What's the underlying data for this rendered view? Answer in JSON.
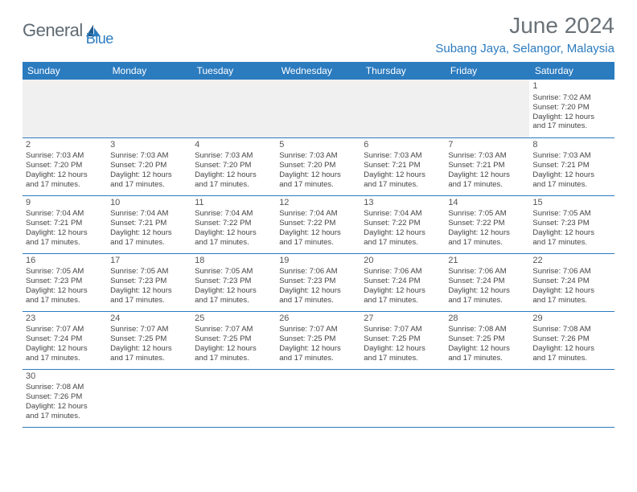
{
  "logo": {
    "text1": "General",
    "text2": "Blue"
  },
  "title": "June 2024",
  "location": "Subang Jaya, Selangor, Malaysia",
  "dayNames": [
    "Sunday",
    "Monday",
    "Tuesday",
    "Wednesday",
    "Thursday",
    "Friday",
    "Saturday"
  ],
  "colors": {
    "headerBg": "#2b7bbf",
    "headerText": "#ffffff",
    "titleColor": "#6a7278",
    "locationColor": "#2b7bbf",
    "logoGray": "#5f6a72",
    "logoBlue": "#2b7bbf",
    "cellBorder": "#2b7bbf",
    "blankBg": "#f0f0f0"
  },
  "firstDayIndex": 6,
  "daysInMonth": 30,
  "days": {
    "1": {
      "sunrise": "7:02 AM",
      "sunset": "7:20 PM",
      "daylight": "12 hours and 17 minutes."
    },
    "2": {
      "sunrise": "7:03 AM",
      "sunset": "7:20 PM",
      "daylight": "12 hours and 17 minutes."
    },
    "3": {
      "sunrise": "7:03 AM",
      "sunset": "7:20 PM",
      "daylight": "12 hours and 17 minutes."
    },
    "4": {
      "sunrise": "7:03 AM",
      "sunset": "7:20 PM",
      "daylight": "12 hours and 17 minutes."
    },
    "5": {
      "sunrise": "7:03 AM",
      "sunset": "7:20 PM",
      "daylight": "12 hours and 17 minutes."
    },
    "6": {
      "sunrise": "7:03 AM",
      "sunset": "7:21 PM",
      "daylight": "12 hours and 17 minutes."
    },
    "7": {
      "sunrise": "7:03 AM",
      "sunset": "7:21 PM",
      "daylight": "12 hours and 17 minutes."
    },
    "8": {
      "sunrise": "7:03 AM",
      "sunset": "7:21 PM",
      "daylight": "12 hours and 17 minutes."
    },
    "9": {
      "sunrise": "7:04 AM",
      "sunset": "7:21 PM",
      "daylight": "12 hours and 17 minutes."
    },
    "10": {
      "sunrise": "7:04 AM",
      "sunset": "7:21 PM",
      "daylight": "12 hours and 17 minutes."
    },
    "11": {
      "sunrise": "7:04 AM",
      "sunset": "7:22 PM",
      "daylight": "12 hours and 17 minutes."
    },
    "12": {
      "sunrise": "7:04 AM",
      "sunset": "7:22 PM",
      "daylight": "12 hours and 17 minutes."
    },
    "13": {
      "sunrise": "7:04 AM",
      "sunset": "7:22 PM",
      "daylight": "12 hours and 17 minutes."
    },
    "14": {
      "sunrise": "7:05 AM",
      "sunset": "7:22 PM",
      "daylight": "12 hours and 17 minutes."
    },
    "15": {
      "sunrise": "7:05 AM",
      "sunset": "7:23 PM",
      "daylight": "12 hours and 17 minutes."
    },
    "16": {
      "sunrise": "7:05 AM",
      "sunset": "7:23 PM",
      "daylight": "12 hours and 17 minutes."
    },
    "17": {
      "sunrise": "7:05 AM",
      "sunset": "7:23 PM",
      "daylight": "12 hours and 17 minutes."
    },
    "18": {
      "sunrise": "7:05 AM",
      "sunset": "7:23 PM",
      "daylight": "12 hours and 17 minutes."
    },
    "19": {
      "sunrise": "7:06 AM",
      "sunset": "7:23 PM",
      "daylight": "12 hours and 17 minutes."
    },
    "20": {
      "sunrise": "7:06 AM",
      "sunset": "7:24 PM",
      "daylight": "12 hours and 17 minutes."
    },
    "21": {
      "sunrise": "7:06 AM",
      "sunset": "7:24 PM",
      "daylight": "12 hours and 17 minutes."
    },
    "22": {
      "sunrise": "7:06 AM",
      "sunset": "7:24 PM",
      "daylight": "12 hours and 17 minutes."
    },
    "23": {
      "sunrise": "7:07 AM",
      "sunset": "7:24 PM",
      "daylight": "12 hours and 17 minutes."
    },
    "24": {
      "sunrise": "7:07 AM",
      "sunset": "7:25 PM",
      "daylight": "12 hours and 17 minutes."
    },
    "25": {
      "sunrise": "7:07 AM",
      "sunset": "7:25 PM",
      "daylight": "12 hours and 17 minutes."
    },
    "26": {
      "sunrise": "7:07 AM",
      "sunset": "7:25 PM",
      "daylight": "12 hours and 17 minutes."
    },
    "27": {
      "sunrise": "7:07 AM",
      "sunset": "7:25 PM",
      "daylight": "12 hours and 17 minutes."
    },
    "28": {
      "sunrise": "7:08 AM",
      "sunset": "7:25 PM",
      "daylight": "12 hours and 17 minutes."
    },
    "29": {
      "sunrise": "7:08 AM",
      "sunset": "7:26 PM",
      "daylight": "12 hours and 17 minutes."
    },
    "30": {
      "sunrise": "7:08 AM",
      "sunset": "7:26 PM",
      "daylight": "12 hours and 17 minutes."
    }
  },
  "labels": {
    "sunrise": "Sunrise:",
    "sunset": "Sunset:",
    "daylight": "Daylight:"
  }
}
